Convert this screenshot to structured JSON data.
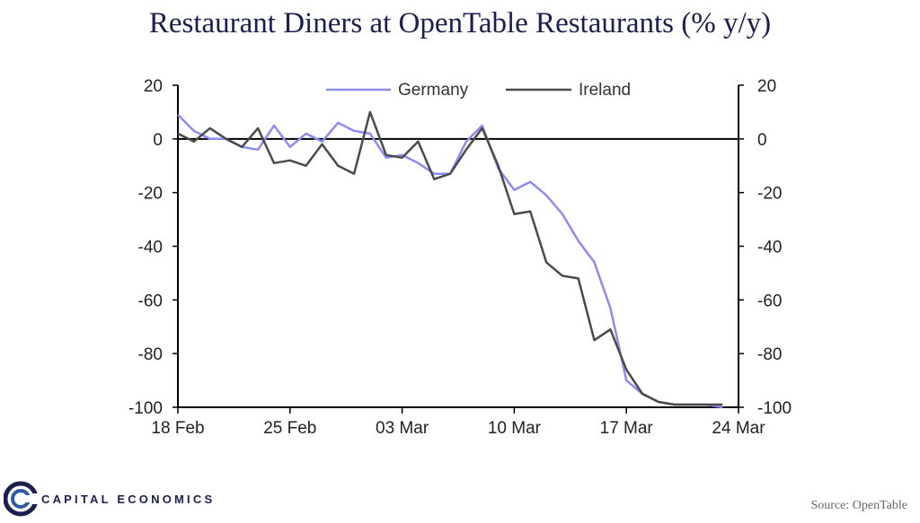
{
  "title": "Restaurant Diners at OpenTable Restaurants (% y/y)",
  "source": "Source: OpenTable",
  "brand": "CAPITAL ECONOMICS",
  "chart_data": {
    "type": "line",
    "x_tick_labels": [
      "18 Feb",
      "25 Feb",
      "03 Mar",
      "10 Mar",
      "17 Mar",
      "24 Mar"
    ],
    "y_ticks": [
      20,
      0,
      -20,
      -40,
      -60,
      -80,
      -100
    ],
    "y_tick_labels": [
      "20",
      "0",
      "-20",
      "-40",
      "-60",
      "-80",
      "-100"
    ],
    "ylim": [
      -100,
      20
    ],
    "x_range_days": [
      0,
      35
    ],
    "legend_position": "top-center",
    "series": [
      {
        "name": "Germany",
        "color": "#8b8cf0",
        "x": [
          0,
          1,
          2,
          3,
          4,
          5,
          6,
          7,
          8,
          9,
          10,
          11,
          12,
          13,
          14,
          15,
          16,
          17,
          18,
          19,
          20,
          21,
          22,
          23,
          24,
          25,
          26,
          27,
          28,
          29,
          30,
          31,
          32,
          33,
          34
        ],
        "y": [
          9,
          3,
          0,
          0,
          -3,
          -4,
          5,
          -3,
          2,
          -1,
          6,
          3,
          2,
          -7,
          -6,
          -9,
          -13,
          -13,
          -1,
          5,
          -11,
          -19,
          -16,
          -21,
          -28,
          -38,
          -46,
          -63,
          -90,
          -95,
          -98,
          -99,
          -99,
          -99,
          -100
        ]
      },
      {
        "name": "Ireland",
        "color": "#4a4a4a",
        "x": [
          0,
          1,
          2,
          3,
          4,
          5,
          6,
          7,
          8,
          9,
          10,
          11,
          12,
          13,
          14,
          15,
          16,
          17,
          18,
          19,
          20,
          21,
          22,
          23,
          24,
          25,
          26,
          27,
          28,
          29,
          30,
          31,
          32,
          33,
          34
        ],
        "y": [
          2,
          -1,
          4,
          0,
          -3,
          4,
          -9,
          -8,
          -10,
          -2,
          -10,
          -13,
          10,
          -6,
          -7,
          -1,
          -15,
          -13,
          -4,
          4,
          -10,
          -28,
          -27,
          -46,
          -51,
          -52,
          -75,
          -71,
          -86,
          -95,
          -98,
          -99,
          -99,
          -99,
          -99
        ]
      }
    ]
  }
}
